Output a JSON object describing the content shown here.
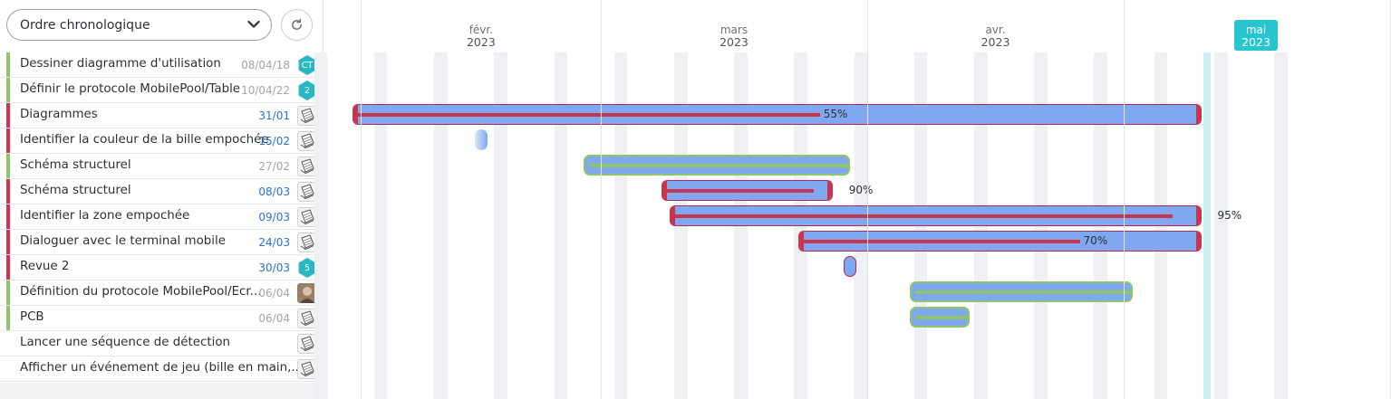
{
  "toolbar": {
    "sort_value": "Ordre chronologique",
    "refresh_icon": "refresh-icon"
  },
  "tasks": [
    {
      "name": "Dessiner diagramme d'utilisation",
      "date": "08/04/18",
      "date_color": "gray",
      "stripe": "#8cc56a",
      "avatar": {
        "type": "hex",
        "text": "CT"
      }
    },
    {
      "name": "Définir le protocole MobilePool/Table",
      "date": "10/04/22",
      "date_color": "gray",
      "stripe": "#8cc56a",
      "avatar": {
        "type": "hex",
        "text": "2"
      }
    },
    {
      "name": "Diagrammes",
      "date": "31/01",
      "date_color": "blue",
      "stripe": "#d2344f",
      "avatar": {
        "type": "icon",
        "text": "notebook-icon"
      }
    },
    {
      "name": "Identifier la couleur de la bille empochée",
      "date": "15/02",
      "date_color": "blue",
      "stripe": "#d2344f",
      "avatar": {
        "type": "icon",
        "text": "notebook-icon"
      }
    },
    {
      "name": "Schéma structurel",
      "date": "27/02",
      "date_color": "gray",
      "stripe": "#8cc56a",
      "avatar": {
        "type": "icon",
        "text": "notebook-icon"
      }
    },
    {
      "name": "Schéma structurel",
      "date": "08/03",
      "date_color": "blue",
      "stripe": "#d2344f",
      "avatar": {
        "type": "icon",
        "text": "notebook-icon"
      }
    },
    {
      "name": "Identifier la zone empochée",
      "date": "09/03",
      "date_color": "blue",
      "stripe": "#d2344f",
      "avatar": {
        "type": "icon",
        "text": "notebook-icon"
      }
    },
    {
      "name": "Dialoguer avec le terminal mobile",
      "date": "24/03",
      "date_color": "blue",
      "stripe": "#d2344f",
      "avatar": {
        "type": "icon",
        "text": "notebook-icon"
      }
    },
    {
      "name": "Revue 2",
      "date": "30/03",
      "date_color": "blue",
      "stripe": "#d2344f",
      "avatar": {
        "type": "hex",
        "text": "5"
      }
    },
    {
      "name": "Définition du protocole MobilePool/Ecr...",
      "date": "06/04",
      "date_color": "gray",
      "stripe": "#8cc56a",
      "avatar": {
        "type": "icon",
        "text": "photo-avatar-icon"
      }
    },
    {
      "name": "PCB",
      "date": "06/04",
      "date_color": "gray",
      "stripe": "#8cc56a",
      "avatar": {
        "type": "icon",
        "text": "notebook-icon"
      }
    },
    {
      "name": "Lancer une séquence de détection",
      "date": "",
      "date_color": "gray",
      "stripe": "",
      "avatar": {
        "type": "icon",
        "text": "notebook-icon"
      }
    },
    {
      "name": "Afficher un événement de jeu (bille en main,...",
      "date": "",
      "date_color": "gray",
      "stripe": "",
      "avatar": {
        "type": "icon",
        "text": "notebook-icon"
      }
    }
  ],
  "timeline": {
    "months": [
      {
        "label": "févr.",
        "year": "2023",
        "current": false
      },
      {
        "label": "mars",
        "year": "2023",
        "current": false
      },
      {
        "label": "avr.",
        "year": "2023",
        "current": false
      },
      {
        "label": "mai",
        "year": "2023",
        "current": true
      }
    ],
    "bars": [
      {
        "row": 2,
        "start": "2023-01-31",
        "end": "2023-05-10",
        "progress": 55,
        "label": "55%",
        "kind": "red"
      },
      {
        "row": 3,
        "start": "2023-02-15",
        "end": "2023-02-16",
        "progress": 0,
        "label": "",
        "kind": "milestone-fade"
      },
      {
        "row": 4,
        "start": "2023-02-27",
        "end": "2023-03-30",
        "progress": 100,
        "label": "",
        "kind": "green"
      },
      {
        "row": 5,
        "start": "2023-03-08",
        "end": "2023-03-28",
        "progress": 90,
        "label": "90%",
        "kind": "red"
      },
      {
        "row": 6,
        "start": "2023-03-09",
        "end": "2023-05-10",
        "progress": 95,
        "label": "95%",
        "kind": "red"
      },
      {
        "row": 7,
        "start": "2023-03-24",
        "end": "2023-05-10",
        "progress": 70,
        "label": "70%",
        "kind": "red"
      },
      {
        "row": 8,
        "start": "2023-03-30",
        "end": "2023-03-31",
        "progress": 0,
        "label": "",
        "kind": "milestone"
      },
      {
        "row": 9,
        "start": "2023-04-06",
        "end": "2023-05-02",
        "progress": 100,
        "label": "",
        "kind": "green"
      },
      {
        "row": 10,
        "start": "2023-04-06",
        "end": "2023-04-13",
        "progress": 100,
        "label": "",
        "kind": "green"
      }
    ]
  }
}
